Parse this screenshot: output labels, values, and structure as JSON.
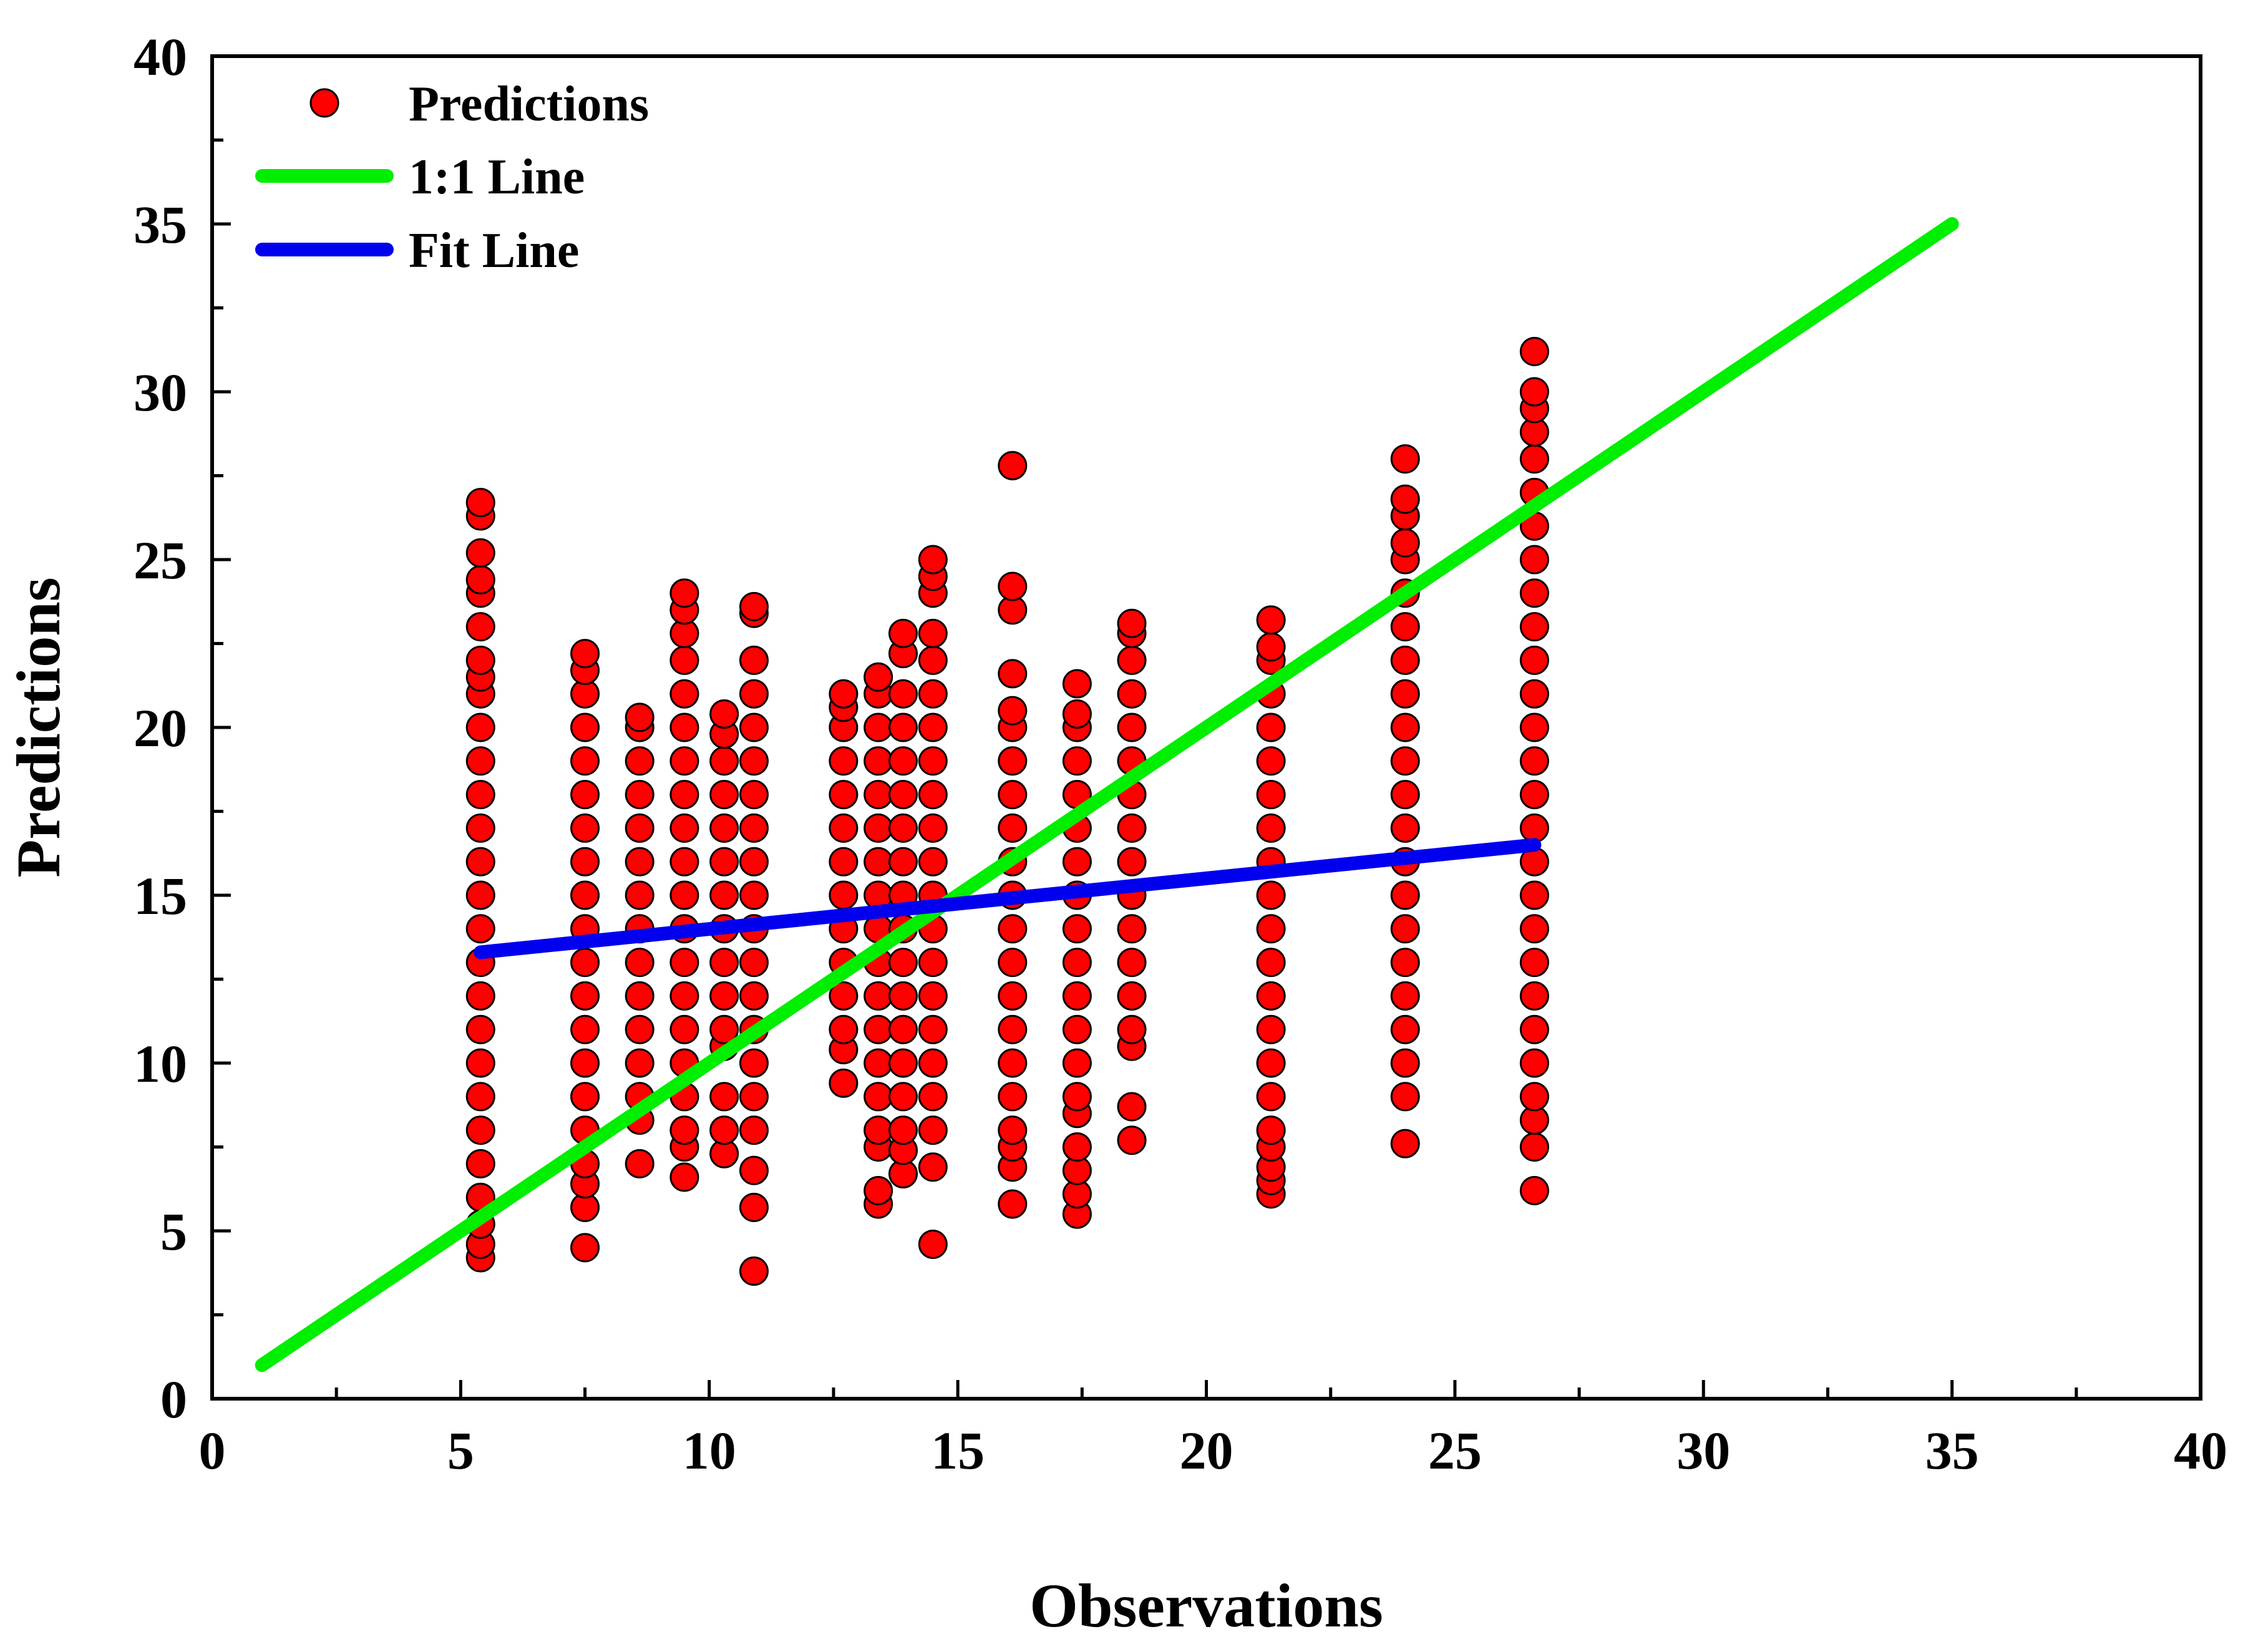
{
  "chart_data": {
    "type": "scatter",
    "title": "",
    "xlabel": "Observations",
    "ylabel": "Predictions",
    "xlim": [
      0,
      40
    ],
    "ylim": [
      0,
      40
    ],
    "xticks": [
      0,
      5,
      10,
      15,
      20,
      25,
      30,
      35,
      40
    ],
    "yticks": [
      0,
      5,
      10,
      15,
      20,
      25,
      30,
      35,
      40
    ],
    "minor_tick_step": 2.5,
    "grid": false,
    "legend": {
      "position": "top-left",
      "entries": [
        {
          "label": "Predictions",
          "kind": "marker",
          "color": "#ff0000"
        },
        {
          "label": "1:1 Line",
          "kind": "line",
          "color": "#00ee00"
        },
        {
          "label": "Fit Line",
          "kind": "line",
          "color": "#0000ee"
        }
      ]
    },
    "series": [
      {
        "name": "Predictions",
        "kind": "scatter",
        "color": "#ff0000",
        "edge_color": "#000000",
        "groups": [
          {
            "x": 5.4,
            "y": [
              4.2,
              4.6,
              5.2,
              6.0,
              7.0,
              8.0,
              9.0,
              10.0,
              11.0,
              12.0,
              13.0,
              14.0,
              15.0,
              16.0,
              17.0,
              18.0,
              19.0,
              20.0,
              21.0,
              21.5,
              22.0,
              23.0,
              24.0,
              24.4,
              25.2,
              26.3,
              26.7
            ]
          },
          {
            "x": 7.5,
            "y": [
              4.5,
              5.7,
              6.4,
              7.0,
              8.0,
              9.0,
              10.0,
              11.0,
              12.0,
              13.0,
              14.0,
              15.0,
              16.0,
              17.0,
              18.0,
              19.0,
              20.0,
              21.0,
              21.7,
              22.2
            ]
          },
          {
            "x": 8.6,
            "y": [
              7.0,
              8.3,
              9.0,
              10.0,
              11.0,
              12.0,
              13.0,
              14.0,
              15.0,
              16.0,
              17.0,
              18.0,
              19.0,
              20.0,
              20.3
            ]
          },
          {
            "x": 9.5,
            "y": [
              6.6,
              7.5,
              8.0,
              9.0,
              10.0,
              11.0,
              12.0,
              13.0,
              14.0,
              15.0,
              16.0,
              17.0,
              18.0,
              19.0,
              20.0,
              21.0,
              22.0,
              22.8,
              23.5,
              24.0
            ]
          },
          {
            "x": 10.3,
            "y": [
              7.3,
              8.0,
              9.0,
              10.5,
              11.0,
              12.0,
              13.0,
              14.0,
              15.0,
              16.0,
              17.0,
              18.0,
              19.0,
              19.8,
              20.4
            ]
          },
          {
            "x": 10.9,
            "y": [
              3.8,
              5.7,
              6.8,
              8.0,
              9.0,
              10.0,
              11.0,
              12.0,
              13.0,
              14.0,
              15.0,
              16.0,
              17.0,
              18.0,
              19.0,
              20.0,
              21.0,
              22.0,
              23.4,
              23.6
            ]
          },
          {
            "x": 12.7,
            "y": [
              9.4,
              10.4,
              11.0,
              12.0,
              13.0,
              14.0,
              15.0,
              16.0,
              17.0,
              18.0,
              19.0,
              20.0,
              20.6,
              21.0
            ]
          },
          {
            "x": 13.4,
            "y": [
              5.8,
              6.2,
              7.5,
              8.0,
              9.0,
              10.0,
              11.0,
              12.0,
              13.0,
              14.0,
              15.0,
              16.0,
              17.0,
              18.0,
              19.0,
              20.0,
              21.0,
              21.5
            ]
          },
          {
            "x": 13.9,
            "y": [
              6.7,
              7.4,
              8.0,
              9.0,
              10.0,
              11.0,
              12.0,
              13.0,
              14.0,
              15.0,
              16.0,
              17.0,
              18.0,
              19.0,
              20.0,
              21.0,
              22.2,
              22.8
            ]
          },
          {
            "x": 14.5,
            "y": [
              4.6,
              6.9,
              8.0,
              9.0,
              10.0,
              11.0,
              12.0,
              13.0,
              14.0,
              15.0,
              16.0,
              17.0,
              18.0,
              19.0,
              20.0,
              21.0,
              22.0,
              22.8,
              24.0,
              24.5,
              25.0
            ]
          },
          {
            "x": 16.1,
            "y": [
              5.8,
              6.9,
              7.5,
              8.0,
              9.0,
              10.0,
              11.0,
              12.0,
              13.0,
              14.0,
              15.0,
              16.0,
              17.0,
              18.0,
              19.0,
              20.0,
              20.5,
              21.6,
              23.5,
              24.2,
              27.8
            ]
          },
          {
            "x": 17.4,
            "y": [
              5.5,
              6.1,
              6.8,
              7.5,
              8.5,
              9.0,
              10.0,
              11.0,
              12.0,
              13.0,
              14.0,
              15.0,
              16.0,
              17.0,
              18.0,
              19.0,
              20.0,
              20.4,
              21.3
            ]
          },
          {
            "x": 18.5,
            "y": [
              7.7,
              8.7,
              10.5,
              11.0,
              12.0,
              13.0,
              14.0,
              15.0,
              16.0,
              17.0,
              18.0,
              19.0,
              20.0,
              21.0,
              22.0,
              22.8,
              23.1
            ]
          },
          {
            "x": 21.3,
            "y": [
              6.1,
              6.5,
              6.9,
              7.5,
              8.0,
              9.0,
              10.0,
              11.0,
              12.0,
              13.0,
              14.0,
              15.0,
              16.0,
              17.0,
              18.0,
              19.0,
              20.0,
              21.0,
              22.0,
              22.4,
              23.2
            ]
          },
          {
            "x": 24.0,
            "y": [
              7.6,
              9.0,
              10.0,
              11.0,
              12.0,
              13.0,
              14.0,
              15.0,
              16.0,
              17.0,
              18.0,
              19.0,
              20.0,
              21.0,
              22.0,
              23.0,
              24.0,
              25.0,
              25.5,
              26.3,
              26.8,
              28.0
            ]
          },
          {
            "x": 26.6,
            "y": [
              6.2,
              7.5,
              8.3,
              9.0,
              10.0,
              11.0,
              12.0,
              13.0,
              14.0,
              15.0,
              16.0,
              17.0,
              18.0,
              19.0,
              20.0,
              21.0,
              22.0,
              23.0,
              24.0,
              25.0,
              26.0,
              27.0,
              28.0,
              28.8,
              29.5,
              30.0,
              31.2
            ]
          }
        ]
      },
      {
        "name": "1:1 Line",
        "kind": "line",
        "color": "#00ee00",
        "x": [
          1,
          35
        ],
        "y": [
          1,
          35
        ]
      },
      {
        "name": "Fit Line",
        "kind": "line",
        "color": "#0000ee",
        "x": [
          5.4,
          26.6
        ],
        "y": [
          13.3,
          16.5
        ]
      }
    ]
  }
}
